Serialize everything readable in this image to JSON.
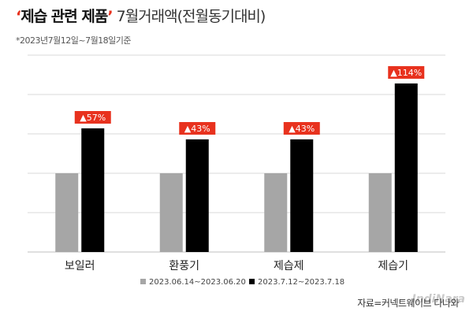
{
  "title": {
    "quote_open": "‘",
    "highlight": "제습 관련 제품",
    "quote_close": "’",
    "rest": " 7월거래액(전월동기대비)"
  },
  "subtitle": "*2023년7월12일~7월18일기준",
  "source": "자료=커넥트웨이브 다나와",
  "watermark": "IndiNara",
  "colors": {
    "prev": "#a6a6a6",
    "curr": "#000000",
    "badge": "#e8321e",
    "grid": "#d9d9d9"
  },
  "chart_data": {
    "type": "bar",
    "categories": [
      "보일러",
      "환풍기",
      "제습제",
      "제습기"
    ],
    "series": [
      {
        "name": "2023.06.14~2023.06.20",
        "values": [
          100,
          100,
          100,
          100
        ]
      },
      {
        "name": "2023.7.12~2023.7.18",
        "values": [
          157,
          143,
          143,
          214
        ]
      }
    ],
    "annotations": [
      "▲57%",
      "▲43%",
      "▲43%",
      "▲114%"
    ],
    "ylim": [
      0,
      250
    ],
    "grid": true,
    "legend": "bottom"
  }
}
